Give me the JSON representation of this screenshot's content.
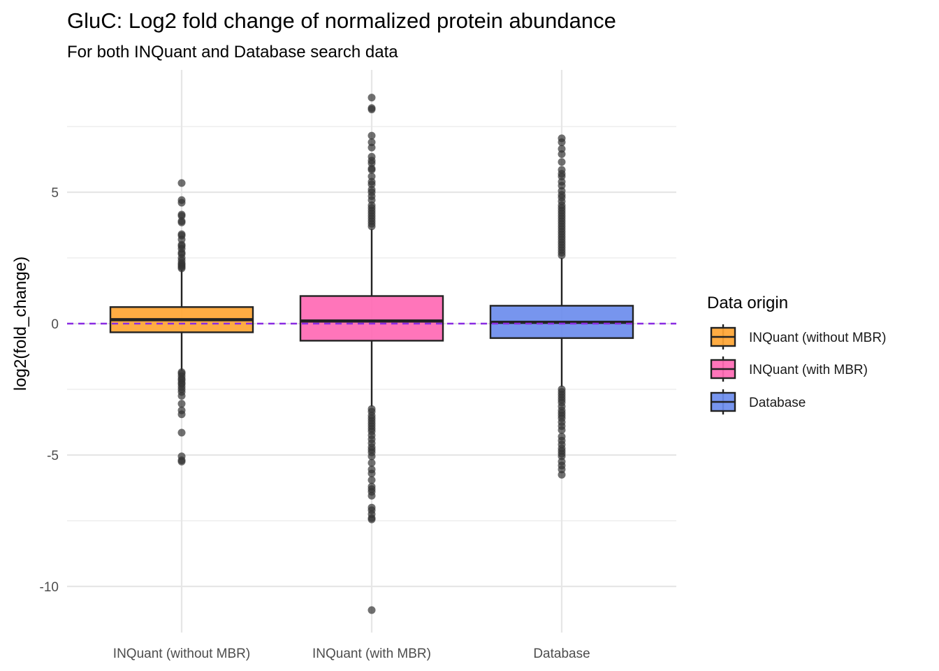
{
  "chart_data": {
    "type": "box",
    "title": "GluC: Log2 fold change of normalized protein abundance",
    "subtitle": "For both INQuant and Database search data",
    "xlabel": "",
    "ylabel": "log2(fold_change)",
    "ylim": [
      -11.7,
      9.5
    ],
    "y_ticks": [
      -10,
      -5,
      0,
      5
    ],
    "y_minor_ticks": [
      -7.5,
      -2.5,
      2.5,
      7.5
    ],
    "grid": true,
    "reference_line": {
      "y": 0,
      "style": "dashed",
      "color": "#8a2be2"
    },
    "legend": {
      "title": "Data origin",
      "position": "right"
    },
    "categories": [
      "INQuant (without MBR)",
      "INQuant (with MBR)",
      "Database"
    ],
    "series": [
      {
        "name": "INQuant (without MBR)",
        "color": "#ffa533",
        "q1": -0.33,
        "median": 0.15,
        "q3": 0.63,
        "whisker_low": -1.78,
        "whisker_high": 2.05,
        "outliers": [
          5.35,
          4.7,
          4.6,
          4.15,
          4.1,
          3.9,
          3.85,
          3.4,
          3.35,
          3.2,
          3.0,
          2.95,
          2.85,
          2.7,
          2.65,
          2.5,
          2.4,
          2.3,
          2.25,
          2.2,
          2.15,
          2.1,
          -1.85,
          -1.9,
          -2.0,
          -2.1,
          -2.15,
          -2.25,
          -2.3,
          -2.4,
          -2.5,
          -2.6,
          -2.75,
          -3.05,
          -3.3,
          -3.45,
          -4.15,
          -5.05,
          -5.2,
          -5.25
        ]
      },
      {
        "name": "INQuant (with MBR)",
        "color": "#ff69b4",
        "q1": -0.65,
        "median": 0.1,
        "q3": 1.05,
        "whisker_low": -3.15,
        "whisker_high": 3.6,
        "outliers": [
          8.6,
          8.2,
          8.15,
          7.15,
          6.9,
          6.7,
          6.35,
          6.2,
          6.1,
          5.9,
          5.85,
          5.6,
          5.4,
          5.3,
          5.1,
          5.0,
          4.85,
          4.7,
          4.5,
          4.4,
          4.3,
          4.2,
          4.1,
          4.0,
          3.9,
          3.8,
          3.7,
          -3.25,
          -3.35,
          -3.5,
          -3.6,
          -3.7,
          -3.8,
          -3.9,
          -4.0,
          -4.1,
          -4.25,
          -4.4,
          -4.55,
          -4.7,
          -4.8,
          -4.9,
          -5.05,
          -5.3,
          -5.55,
          -5.7,
          -5.95,
          -6.2,
          -6.3,
          -6.4,
          -6.55,
          -7.0,
          -7.1,
          -7.25,
          -7.4,
          -7.45,
          -10.9
        ]
      },
      {
        "name": "Database",
        "color": "#6b8ced",
        "q1": -0.55,
        "median": 0.05,
        "q3": 0.68,
        "whisker_low": -2.4,
        "whisker_high": 2.5,
        "outliers": [
          7.05,
          6.9,
          6.65,
          6.45,
          6.15,
          5.85,
          5.7,
          5.6,
          5.4,
          5.25,
          5.05,
          4.9,
          4.8,
          4.65,
          4.5,
          4.4,
          4.3,
          4.2,
          4.1,
          4.0,
          3.9,
          3.8,
          3.7,
          3.6,
          3.5,
          3.4,
          3.3,
          3.2,
          3.1,
          3.0,
          2.9,
          2.8,
          2.7,
          2.6,
          -2.5,
          -2.6,
          -2.7,
          -2.8,
          -2.9,
          -3.0,
          -3.15,
          -3.3,
          -3.4,
          -3.5,
          -3.6,
          -3.75,
          -3.9,
          -4.05,
          -4.3,
          -4.45,
          -4.6,
          -4.75,
          -4.85,
          -4.95,
          -5.05,
          -5.25,
          -5.4,
          -5.55,
          -5.75
        ]
      }
    ]
  }
}
